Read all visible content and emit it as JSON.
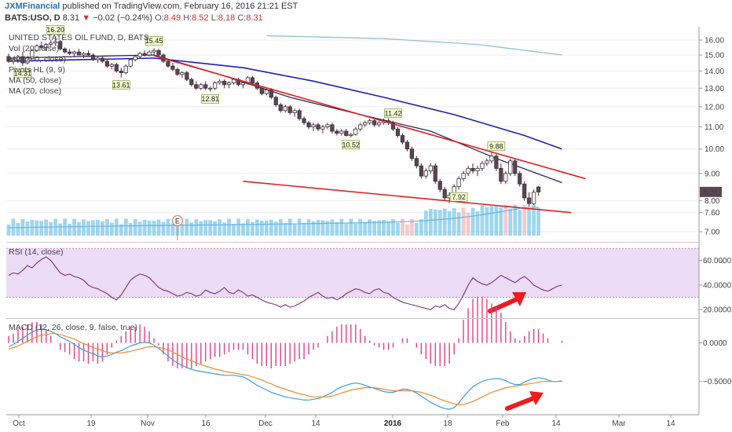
{
  "header": {
    "publisher": "JXMFinancial",
    "published_text": "published on TradingView.com, February 16, 2016 21:21 EST",
    "symbol": "BATS:USO, D",
    "last": "8.31",
    "change": "−0.02 (−0.24%)",
    "o_label": "O:",
    "o_value": "8.49",
    "h_label": "H:",
    "h_value": "8.52",
    "l_label": "L:",
    "l_value": "8.18",
    "c_label": "C:",
    "c_value": "8.31"
  },
  "colors": {
    "up_candle": "#ffffff",
    "down_candle": "#5b4652",
    "ma50": "#1f1fb4",
    "ma20": "#2b2b55",
    "ma_long": "#8fbfd8",
    "trendline": "#e02020",
    "volume": "#7fc8ea",
    "volume_down": "#f3b8b8",
    "rsi": "#7b2f7b",
    "rsi_band": "#ecdcf5",
    "macd": "#3a9fe0",
    "signal": "#f08a30",
    "hist": "#e0408a",
    "arrow": "#ee1c1c",
    "pivot_box": "#f4fbd0"
  },
  "chart_data": [
    {
      "type": "candlestick",
      "title": "UNITED STATES OIL FUND, D, BATS",
      "overlays": [
        "Vol (20, false)",
        "MA (200, close)",
        "Pivots HL (9, 9)",
        "MA (50, close)",
        "MA (20, close)"
      ],
      "x_ticks": [
        "Oct",
        "19",
        "Nov",
        "16",
        "Dec",
        "14",
        "2016",
        "18",
        "Feb",
        "14",
        "Mar",
        "14"
      ],
      "x_ticks_bold": [
        "2016"
      ],
      "y_ticks": [
        16.0,
        15.0,
        14.0,
        13.0,
        12.0,
        11.0,
        10.0,
        9.0,
        8.0,
        7.6,
        7.0
      ],
      "y_tick_labels": [
        "16.00",
        "15.00",
        "14.00",
        "13.00",
        "12.00",
        "11.00",
        "10.00",
        "9.00",
        "8.00",
        "7.60",
        "7.00"
      ],
      "last_price_label": "8.31",
      "pivot_labels": [
        {
          "text": "16.20",
          "index": 10,
          "position": "above"
        },
        {
          "text": "14.31",
          "index": 3,
          "position": "below"
        },
        {
          "text": "15.45",
          "index": 31,
          "position": "above"
        },
        {
          "text": "13.61",
          "index": 24,
          "position": "below"
        },
        {
          "text": "12.81",
          "index": 43,
          "position": "below"
        },
        {
          "text": "10.52",
          "index": 73,
          "position": "below"
        },
        {
          "text": "11.42",
          "index": 82,
          "position": "above"
        },
        {
          "text": "9.88",
          "index": 104,
          "position": "above"
        },
        {
          "text": "7.92",
          "index": 96,
          "position": "below"
        }
      ],
      "earnings_marker": {
        "text": "E",
        "index": 36
      },
      "ohlc": [
        [
          14.9,
          15.1,
          14.5,
          14.6
        ],
        [
          14.6,
          14.8,
          14.4,
          14.7
        ],
        [
          14.7,
          15.0,
          14.5,
          14.9
        ],
        [
          14.9,
          15.2,
          14.31,
          14.5
        ],
        [
          14.5,
          14.9,
          14.4,
          14.8
        ],
        [
          14.8,
          15.4,
          14.7,
          15.3
        ],
        [
          15.3,
          15.7,
          15.2,
          15.6
        ],
        [
          15.6,
          15.9,
          15.4,
          15.5
        ],
        [
          15.5,
          15.8,
          15.3,
          15.7
        ],
        [
          15.7,
          16.0,
          15.5,
          15.8
        ],
        [
          15.8,
          16.2,
          15.6,
          15.9
        ],
        [
          15.9,
          16.0,
          15.3,
          15.4
        ],
        [
          15.4,
          15.5,
          15.1,
          15.2
        ],
        [
          15.2,
          15.4,
          15.0,
          15.1
        ],
        [
          15.1,
          15.3,
          14.9,
          15.2
        ],
        [
          15.2,
          15.4,
          15.0,
          15.0
        ],
        [
          15.0,
          15.2,
          14.8,
          15.1
        ],
        [
          15.1,
          15.3,
          14.9,
          15.0
        ],
        [
          15.0,
          15.1,
          14.6,
          14.7
        ],
        [
          14.7,
          14.9,
          14.5,
          14.8
        ],
        [
          14.8,
          14.9,
          14.5,
          14.6
        ],
        [
          14.6,
          14.7,
          14.2,
          14.3
        ],
        [
          14.3,
          14.5,
          14.1,
          14.4
        ],
        [
          14.4,
          14.5,
          13.9,
          14.0
        ],
        [
          14.0,
          14.2,
          13.61,
          13.9
        ],
        [
          13.9,
          14.4,
          13.8,
          14.3
        ],
        [
          14.3,
          14.8,
          14.2,
          14.7
        ],
        [
          14.7,
          15.0,
          14.6,
          14.9
        ],
        [
          14.9,
          15.2,
          14.8,
          15.1
        ],
        [
          15.1,
          15.3,
          14.9,
          15.0
        ],
        [
          15.0,
          15.3,
          14.9,
          15.2
        ],
        [
          15.2,
          15.45,
          15.0,
          15.3
        ],
        [
          15.3,
          15.4,
          14.9,
          15.0
        ],
        [
          15.0,
          15.1,
          14.5,
          14.6
        ],
        [
          14.6,
          14.7,
          14.2,
          14.3
        ],
        [
          14.3,
          14.5,
          14.0,
          14.1
        ],
        [
          14.1,
          14.2,
          13.7,
          13.8
        ],
        [
          13.8,
          14.0,
          13.6,
          13.9
        ],
        [
          13.9,
          14.0,
          13.4,
          13.5
        ],
        [
          13.5,
          13.6,
          13.1,
          13.2
        ],
        [
          13.2,
          13.4,
          12.9,
          13.0
        ],
        [
          13.0,
          13.3,
          12.9,
          13.2
        ],
        [
          13.2,
          13.4,
          12.9,
          13.0
        ],
        [
          13.0,
          13.1,
          12.81,
          13.0
        ],
        [
          13.0,
          13.4,
          12.9,
          13.3
        ],
        [
          13.3,
          13.5,
          13.2,
          13.4
        ],
        [
          13.4,
          13.5,
          13.0,
          13.2
        ],
        [
          13.2,
          13.4,
          13.0,
          13.3
        ],
        [
          13.3,
          13.6,
          13.2,
          13.5
        ],
        [
          13.5,
          13.6,
          13.1,
          13.2
        ],
        [
          13.2,
          13.4,
          13.0,
          13.3
        ],
        [
          13.3,
          13.7,
          13.2,
          13.6
        ],
        [
          13.6,
          13.7,
          13.2,
          13.3
        ],
        [
          13.3,
          13.4,
          12.9,
          13.0
        ],
        [
          13.0,
          13.1,
          12.6,
          12.7
        ],
        [
          12.7,
          13.0,
          12.6,
          12.9
        ],
        [
          12.9,
          13.0,
          12.4,
          12.5
        ],
        [
          12.5,
          12.6,
          12.0,
          12.1
        ],
        [
          12.1,
          12.2,
          11.7,
          11.8
        ],
        [
          11.8,
          12.1,
          11.7,
          12.0
        ],
        [
          12.0,
          12.1,
          11.6,
          11.7
        ],
        [
          11.7,
          11.9,
          11.5,
          11.8
        ],
        [
          11.8,
          11.9,
          11.3,
          11.4
        ],
        [
          11.4,
          11.5,
          11.1,
          11.2
        ],
        [
          11.2,
          11.3,
          10.9,
          11.0
        ],
        [
          11.0,
          11.2,
          10.8,
          11.1
        ],
        [
          11.1,
          11.2,
          10.8,
          10.9
        ],
        [
          10.9,
          11.1,
          10.7,
          11.0
        ],
        [
          11.0,
          11.2,
          10.9,
          11.1
        ],
        [
          11.1,
          11.2,
          10.7,
          10.8
        ],
        [
          10.8,
          10.9,
          10.6,
          10.7
        ],
        [
          10.7,
          10.9,
          10.6,
          10.8
        ],
        [
          10.8,
          10.9,
          10.55,
          10.6
        ],
        [
          10.6,
          10.7,
          10.52,
          10.65
        ],
        [
          10.65,
          11.0,
          10.6,
          10.9
        ],
        [
          10.9,
          11.2,
          10.8,
          11.1
        ],
        [
          11.1,
          11.3,
          11.0,
          11.2
        ],
        [
          11.2,
          11.4,
          11.1,
          11.3
        ],
        [
          11.3,
          11.4,
          11.0,
          11.1
        ],
        [
          11.1,
          11.3,
          11.0,
          11.2
        ],
        [
          11.2,
          11.4,
          11.1,
          11.3
        ],
        [
          11.3,
          11.42,
          11.1,
          11.2
        ],
        [
          11.2,
          11.3,
          10.8,
          10.9
        ],
        [
          10.9,
          11.0,
          10.5,
          10.6
        ],
        [
          10.6,
          10.7,
          10.2,
          10.3
        ],
        [
          10.3,
          10.4,
          9.9,
          10.0
        ],
        [
          10.0,
          10.1,
          9.5,
          9.6
        ],
        [
          9.6,
          9.7,
          9.2,
          9.3
        ],
        [
          9.3,
          9.4,
          8.8,
          8.9
        ],
        [
          8.9,
          9.2,
          8.8,
          9.1
        ],
        [
          9.1,
          9.4,
          9.0,
          9.3
        ],
        [
          9.3,
          9.4,
          8.6,
          8.7
        ],
        [
          8.7,
          8.8,
          8.3,
          8.4
        ],
        [
          8.4,
          8.5,
          8.0,
          8.1
        ],
        [
          8.1,
          8.3,
          7.92,
          8.2
        ],
        [
          8.2,
          8.6,
          8.1,
          8.5
        ],
        [
          8.5,
          8.9,
          8.4,
          8.8
        ],
        [
          8.8,
          9.1,
          8.7,
          9.0
        ],
        [
          9.0,
          9.3,
          8.9,
          9.2
        ],
        [
          9.2,
          9.4,
          9.0,
          9.1
        ],
        [
          9.1,
          9.3,
          8.9,
          9.2
        ],
        [
          9.2,
          9.5,
          9.1,
          9.4
        ],
        [
          9.4,
          9.6,
          9.3,
          9.5
        ],
        [
          9.5,
          9.88,
          9.4,
          9.7
        ],
        [
          9.7,
          9.8,
          9.1,
          9.2
        ],
        [
          9.2,
          9.4,
          8.6,
          8.7
        ],
        [
          8.7,
          9.1,
          8.6,
          9.0
        ],
        [
          9.0,
          9.6,
          8.9,
          9.5
        ],
        [
          9.5,
          9.6,
          8.9,
          9.0
        ],
        [
          9.0,
          9.1,
          8.5,
          8.6
        ],
        [
          8.6,
          8.7,
          8.0,
          8.1
        ],
        [
          8.1,
          8.3,
          7.8,
          7.9
        ],
        [
          7.9,
          8.4,
          7.85,
          8.3
        ],
        [
          8.49,
          8.52,
          8.18,
          8.31
        ]
      ],
      "ma20_path": [
        [
          0,
          14.8
        ],
        [
          15,
          14.9
        ],
        [
          31,
          15.0
        ],
        [
          45,
          13.8
        ],
        [
          60,
          12.5
        ],
        [
          75,
          11.6
        ],
        [
          90,
          10.8
        ],
        [
          104,
          9.6
        ],
        [
          118,
          8.65
        ]
      ],
      "ma50_path": [
        [
          0,
          14.6
        ],
        [
          31,
          14.8
        ],
        [
          50,
          14.2
        ],
        [
          65,
          13.4
        ],
        [
          80,
          12.5
        ],
        [
          95,
          11.6
        ],
        [
          110,
          10.6
        ],
        [
          118,
          10.0
        ]
      ],
      "ma200_path": [
        [
          55,
          16.3
        ],
        [
          80,
          16.1
        ],
        [
          100,
          15.7
        ],
        [
          118,
          15.0
        ]
      ],
      "trendlines": [
        [
          [
            31,
            14.95
          ],
          [
            123,
            8.8
          ]
        ],
        [
          [
            50,
            8.7
          ],
          [
            120,
            7.6
          ]
        ]
      ],
      "volume": {
        "max": 100,
        "bars_approx_pct": "30 to 95, larger after index 90",
        "red_bars_index": [
          84,
          85,
          86,
          97,
          98,
          106,
          110
        ]
      }
    },
    {
      "type": "line",
      "title": "RSI (14, close)",
      "y_ticks": [
        60,
        40,
        20
      ],
      "y_tick_labels": [
        "60.0000",
        "40.0000",
        "20.0000"
      ],
      "band": [
        30,
        70
      ],
      "ylim": [
        15,
        72
      ],
      "values": [
        48,
        50,
        49,
        52,
        56,
        54,
        58,
        61,
        63,
        60,
        55,
        50,
        48,
        49,
        47,
        46,
        44,
        40,
        38,
        37,
        35,
        33,
        30,
        28,
        32,
        38,
        44,
        47,
        49,
        48,
        46,
        42,
        38,
        36,
        35,
        33,
        31,
        32,
        34,
        33,
        31,
        32,
        36,
        34,
        33,
        35,
        38,
        34,
        33,
        36,
        34,
        31,
        32,
        30,
        28,
        26,
        25,
        24,
        22,
        24,
        22,
        23,
        25,
        27,
        30,
        32,
        34,
        31,
        29,
        30,
        28,
        30,
        33,
        35,
        37,
        36,
        34,
        33,
        36,
        37,
        34,
        33,
        30,
        28,
        26,
        25,
        24,
        23,
        22,
        21,
        20,
        23,
        22,
        24,
        21,
        20,
        25,
        32,
        40,
        46,
        43,
        41,
        40,
        42,
        45,
        48,
        46,
        44,
        42,
        45,
        47,
        44,
        40,
        38,
        36,
        35,
        37,
        39,
        40
      ]
    },
    {
      "type": "line",
      "title": "MACD (12, 26, close, 9, false, true)",
      "y_ticks": [
        0.0,
        -0.5
      ],
      "y_tick_labels": [
        "0.0000",
        "−0.5000"
      ],
      "ylim": [
        -0.9,
        0.25
      ],
      "macd": [
        -0.05,
        -0.02,
        0.02,
        0.06,
        0.1,
        0.14,
        0.17,
        0.18,
        0.17,
        0.15,
        0.12,
        0.08,
        0.05,
        0.02,
        -0.02,
        -0.06,
        -0.09,
        -0.12,
        -0.14,
        -0.17,
        -0.18,
        -0.17,
        -0.15,
        -0.12,
        -0.1,
        -0.07,
        -0.04,
        -0.02,
        0.0,
        0.01,
        0.0,
        -0.03,
        -0.07,
        -0.12,
        -0.17,
        -0.22,
        -0.26,
        -0.29,
        -0.32,
        -0.34,
        -0.36,
        -0.37,
        -0.38,
        -0.39,
        -0.4,
        -0.41,
        -0.42,
        -0.42,
        -0.42,
        -0.43,
        -0.44,
        -0.47,
        -0.51,
        -0.55,
        -0.58,
        -0.61,
        -0.64,
        -0.66,
        -0.68,
        -0.7,
        -0.71,
        -0.72,
        -0.73,
        -0.74,
        -0.74,
        -0.73,
        -0.72,
        -0.7,
        -0.67,
        -0.64,
        -0.6,
        -0.57,
        -0.55,
        -0.53,
        -0.52,
        -0.53,
        -0.55,
        -0.57,
        -0.59,
        -0.61,
        -0.63,
        -0.64,
        -0.64,
        -0.62,
        -0.6,
        -0.6,
        -0.62,
        -0.65,
        -0.69,
        -0.73,
        -0.77,
        -0.8,
        -0.83,
        -0.85,
        -0.86,
        -0.84,
        -0.78,
        -0.7,
        -0.63,
        -0.57,
        -0.53,
        -0.5,
        -0.48,
        -0.47,
        -0.46,
        -0.47,
        -0.49,
        -0.52,
        -0.54,
        -0.54,
        -0.51,
        -0.48,
        -0.46,
        -0.45,
        -0.46,
        -0.48,
        -0.5,
        -0.5,
        -0.49
      ],
      "signal": [
        -0.08,
        -0.06,
        -0.04,
        -0.01,
        0.02,
        0.05,
        0.08,
        0.1,
        0.11,
        0.12,
        0.12,
        0.11,
        0.09,
        0.07,
        0.05,
        0.02,
        -0.01,
        -0.03,
        -0.06,
        -0.08,
        -0.1,
        -0.12,
        -0.13,
        -0.13,
        -0.13,
        -0.12,
        -0.11,
        -0.09,
        -0.08,
        -0.06,
        -0.05,
        -0.05,
        -0.06,
        -0.07,
        -0.09,
        -0.12,
        -0.15,
        -0.18,
        -0.21,
        -0.23,
        -0.26,
        -0.28,
        -0.3,
        -0.32,
        -0.34,
        -0.35,
        -0.37,
        -0.38,
        -0.39,
        -0.4,
        -0.41,
        -0.42,
        -0.44,
        -0.46,
        -0.48,
        -0.51,
        -0.53,
        -0.56,
        -0.58,
        -0.6,
        -0.62,
        -0.64,
        -0.66,
        -0.67,
        -0.69,
        -0.7,
        -0.7,
        -0.7,
        -0.7,
        -0.69,
        -0.67,
        -0.65,
        -0.63,
        -0.61,
        -0.6,
        -0.59,
        -0.58,
        -0.58,
        -0.58,
        -0.59,
        -0.6,
        -0.61,
        -0.62,
        -0.62,
        -0.62,
        -0.62,
        -0.62,
        -0.63,
        -0.64,
        -0.66,
        -0.68,
        -0.7,
        -0.73,
        -0.75,
        -0.77,
        -0.79,
        -0.8,
        -0.8,
        -0.78,
        -0.76,
        -0.73,
        -0.7,
        -0.67,
        -0.64,
        -0.62,
        -0.6,
        -0.58,
        -0.57,
        -0.56,
        -0.55,
        -0.54,
        -0.53,
        -0.52,
        -0.51,
        -0.5,
        -0.5,
        -0.5,
        -0.5,
        -0.5
      ]
    }
  ]
}
